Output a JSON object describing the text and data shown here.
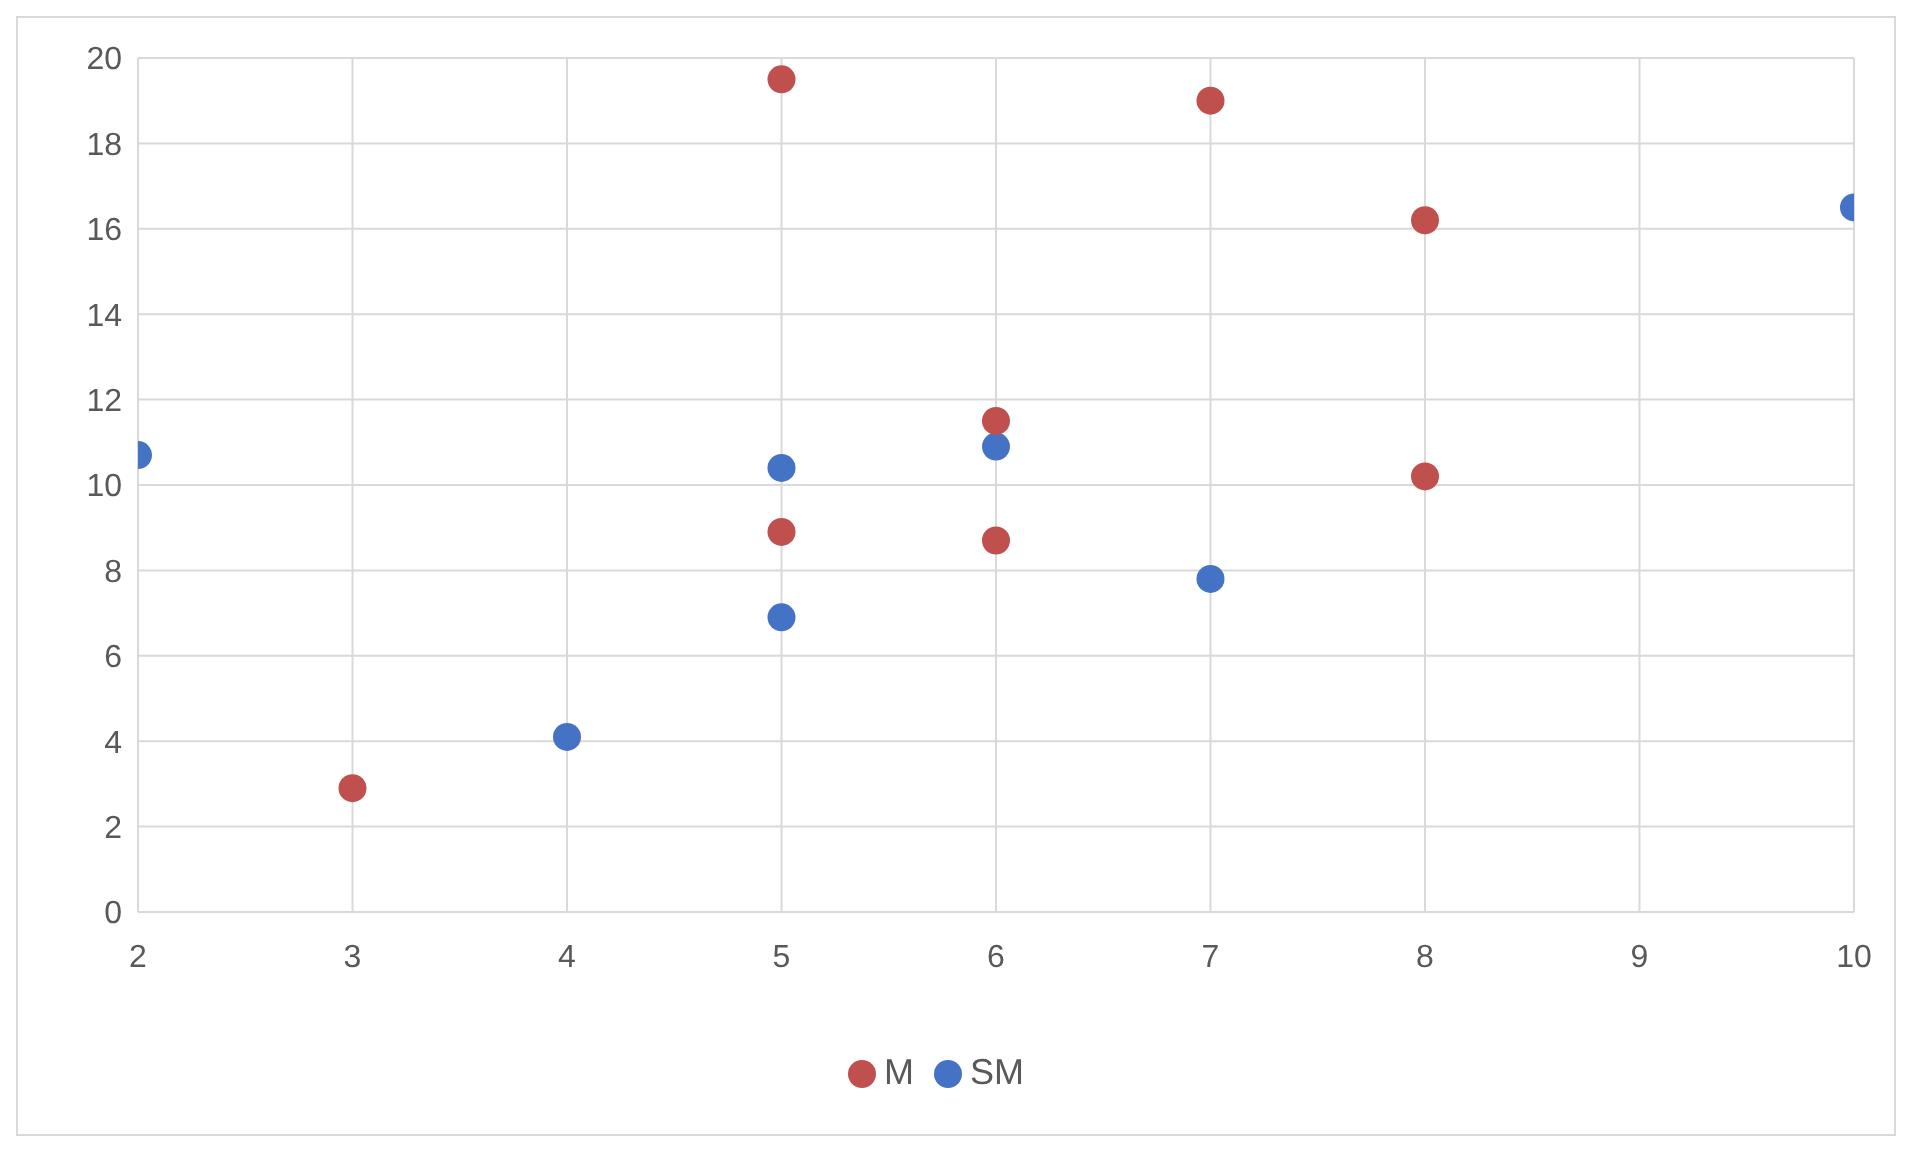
{
  "chart_data": {
    "type": "scatter",
    "xlim": [
      2,
      10
    ],
    "xticks": [
      2,
      3,
      4,
      5,
      6,
      7,
      8,
      9,
      10
    ],
    "ylim": [
      0,
      20
    ],
    "yticks": [
      0,
      2,
      4,
      6,
      8,
      10,
      12,
      14,
      16,
      18,
      20
    ],
    "grid": true,
    "legend": "bottom",
    "marker": "circle",
    "series": [
      {
        "name": "SM",
        "color": "#4472c4",
        "x": [
          2,
          4,
          5,
          5,
          6,
          7,
          10
        ],
        "values": [
          10.7,
          4.1,
          6.9,
          10.4,
          10.9,
          7.8,
          16.5
        ]
      },
      {
        "name": "M",
        "color": "#c0504d",
        "x": [
          3,
          5,
          5,
          6,
          6,
          7,
          8,
          8
        ],
        "values": [
          2.9,
          8.9,
          19.5,
          11.5,
          8.7,
          19.0,
          16.2,
          10.2
        ]
      }
    ]
  }
}
